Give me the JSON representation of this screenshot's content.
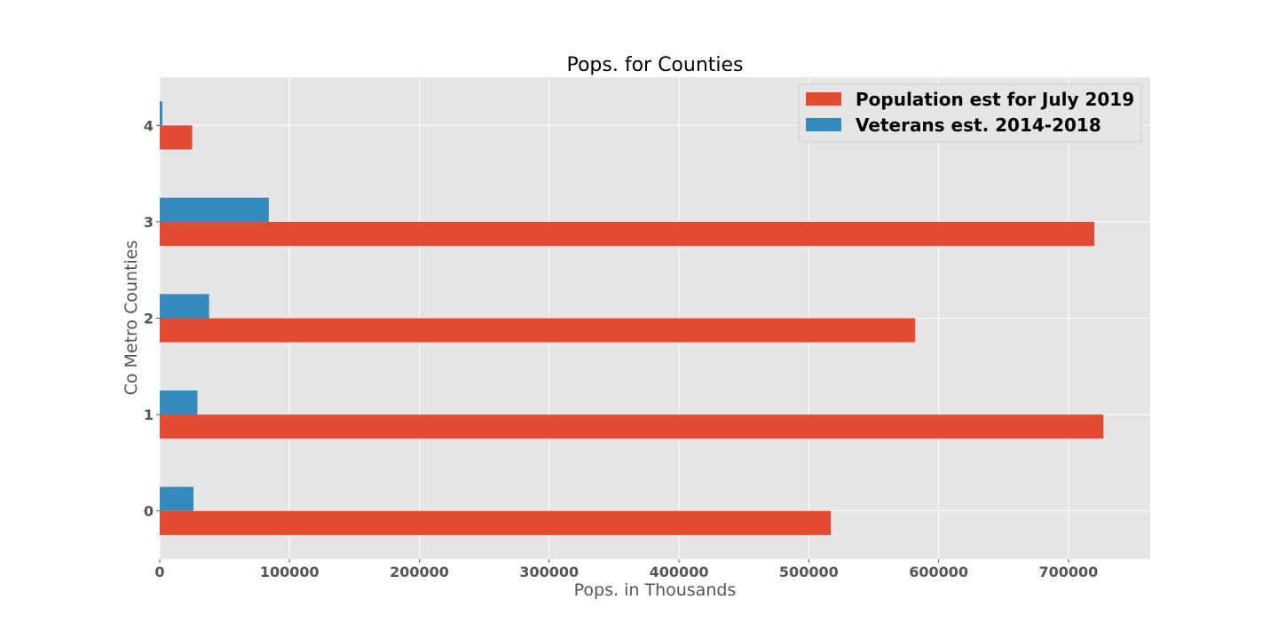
{
  "chart_data": {
    "type": "bar",
    "orientation": "horizontal",
    "title": "Pops. for Counties",
    "xlabel": "Pops. in Thousands",
    "ylabel": "Co Metro Counties",
    "categories": [
      "0",
      "1",
      "2",
      "3",
      "4"
    ],
    "series": [
      {
        "name": "Population est for July 2019",
        "color": "#E24A33",
        "values": [
          517000,
          727000,
          582000,
          720000,
          25000
        ]
      },
      {
        "name": "Veterans est. 2014-2018",
        "color": "#348ABD",
        "values": [
          26000,
          29000,
          38000,
          84000,
          2000
        ]
      }
    ],
    "xticks": [
      0,
      100000,
      200000,
      300000,
      400000,
      500000,
      600000,
      700000
    ],
    "xtick_labels": [
      "0",
      "100000",
      "200000",
      "300000",
      "400000",
      "500000",
      "600000",
      "700000"
    ],
    "xlim": [
      0,
      763000
    ],
    "ylim": [
      -0.5,
      4.5
    ],
    "grid": true,
    "legend_position": "top-right",
    "style": {
      "plot_background": "#E5E5E5",
      "grid_color": "#FFFFFF",
      "text_color": "#555555"
    }
  }
}
